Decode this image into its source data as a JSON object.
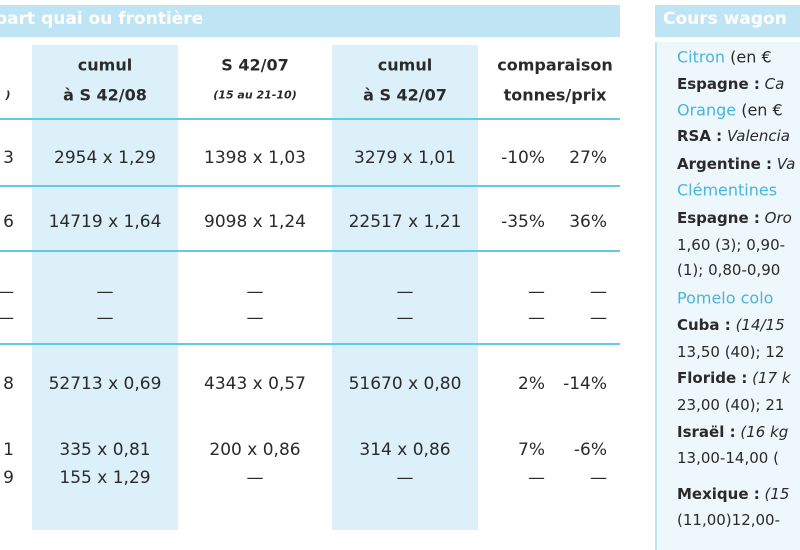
{
  "left_panel": {
    "title": "part quai ou frontière",
    "headers": [
      [
        ")"
      ],
      [
        "cumul",
        "à S 42/08"
      ],
      [
        "S 42/07",
        "(15 au 21-10)"
      ],
      [
        "cumul",
        "à S 42/07"
      ],
      [
        "comparaison",
        "tonnes/prix"
      ]
    ],
    "rows": [
      [
        [
          "3",
          "2954 x 1,29",
          "1398 x 1,03",
          "3279 x 1,01",
          "-10%",
          "27%"
        ]
      ],
      [
        [
          "6",
          "14719 x 1,64",
          "9098 x 1,24",
          "22517 x 1,21",
          "-35%",
          "36%"
        ]
      ],
      [
        [
          "—",
          "—",
          "—",
          "—",
          "—",
          "—"
        ],
        [
          "—",
          "—",
          "—",
          "—",
          "—",
          "—"
        ]
      ],
      [
        [
          "8",
          "52713 x 0,69",
          "4343 x 0,57",
          "51670 x 0,80",
          "2%",
          "-14%"
        ]
      ],
      [
        [
          "1",
          "335 x 0,81",
          "200 x 0,86",
          "314 x 0,86",
          "7%",
          "-6%"
        ],
        [
          "9",
          "155 x 1,29",
          "—",
          "—",
          "—",
          "—"
        ]
      ]
    ]
  },
  "right_panel": {
    "title": "Cours wagon",
    "sections": [
      {
        "title": "Citron",
        "unit": "(en €",
        "lines": [
          {
            "label": "Espagne :",
            "text": "Ca"
          }
        ]
      },
      {
        "title": "Orange",
        "unit": "(en €",
        "lines": [
          {
            "label": "RSA :",
            "text": "Valencia"
          },
          {
            "label": "Argentine :",
            "text": "Va"
          }
        ]
      },
      {
        "title": "Clémentines",
        "lines": [
          {
            "label": "Espagne :",
            "text": "Oro"
          },
          {
            "text": "1,60 (3); 0,90-"
          },
          {
            "text": "(1); 0,80-0,90"
          }
        ]
      },
      {
        "title": "Pomelo colo",
        "lines": [
          {
            "label": "Cuba :",
            "text": "(14/15"
          },
          {
            "text": "13,50 (40); 12"
          },
          {
            "label": "Floride :",
            "text": "(17 k"
          },
          {
            "text": "23,00 (40); 21"
          },
          {
            "label": "Israël :",
            "text": "(16 kg"
          },
          {
            "text": "13,00-14,00 ("
          },
          {
            "label": "Mexique :",
            "text": "(15"
          },
          {
            "text": "(11,00)12,00-"
          }
        ]
      }
    ]
  }
}
